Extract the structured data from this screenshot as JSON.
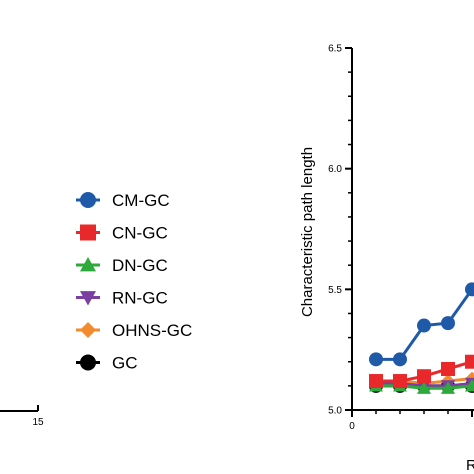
{
  "chart_data": [
    {
      "type": "line",
      "panel": "left (cropped)",
      "x_tick_labels": [
        "15"
      ],
      "legend": {
        "placement": "right",
        "entries": [
          {
            "name": "CM-GC",
            "color": "#1f5aa8",
            "marker": "circle"
          },
          {
            "name": "CN-GC",
            "color": "#e8282a",
            "marker": "square"
          },
          {
            "name": "DN-GC",
            "color": "#2eaa3c",
            "marker": "triangle-up"
          },
          {
            "name": "RN-GC",
            "color": "#7b3fa0",
            "marker": "triangle-down"
          },
          {
            "name": "OHNS-GC",
            "color": "#f28a2e",
            "marker": "diamond"
          },
          {
            "name": "GC",
            "color": "#000000",
            "marker": "circle"
          }
        ]
      }
    },
    {
      "type": "line",
      "panel": "right (cropped)",
      "ylabel": "Characteristic path length",
      "xlabel_partial": "R",
      "ylim": [
        5.0,
        6.5
      ],
      "y_tick_labels": [
        "5.0",
        "5.5",
        "6.0",
        "6.5"
      ],
      "x_tick_labels": [
        "0"
      ],
      "grid": false,
      "series": [
        {
          "name": "CM-GC",
          "color": "#1f5aa8",
          "marker": "circle",
          "x": [
            1,
            2,
            3,
            4,
            5
          ],
          "y": [
            5.21,
            5.21,
            5.35,
            5.36,
            5.5
          ]
        },
        {
          "name": "CN-GC",
          "color": "#e8282a",
          "marker": "square",
          "x": [
            1,
            2,
            3,
            4,
            5
          ],
          "y": [
            5.12,
            5.12,
            5.14,
            5.17,
            5.2
          ]
        },
        {
          "name": "DN-GC",
          "color": "#2eaa3c",
          "marker": "triangle-up",
          "x": [
            1,
            2,
            3,
            4,
            5
          ],
          "y": [
            5.1,
            5.1,
            5.09,
            5.09,
            5.1
          ]
        },
        {
          "name": "RN-GC",
          "color": "#7b3fa0",
          "marker": "triangle-down",
          "x": [
            1,
            2,
            3,
            4,
            5
          ],
          "y": [
            5.11,
            5.11,
            5.1,
            5.1,
            5.11
          ]
        },
        {
          "name": "OHNS-GC",
          "color": "#f28a2e",
          "marker": "diamond",
          "x": [
            1,
            2,
            3,
            4,
            5
          ],
          "y": [
            5.12,
            5.12,
            5.11,
            5.12,
            5.13
          ]
        },
        {
          "name": "GC",
          "color": "#000000",
          "marker": "circle",
          "x": [
            1,
            2,
            3,
            4,
            5
          ],
          "y": [
            5.1,
            5.1,
            5.1,
            5.1,
            5.1
          ]
        }
      ]
    }
  ]
}
